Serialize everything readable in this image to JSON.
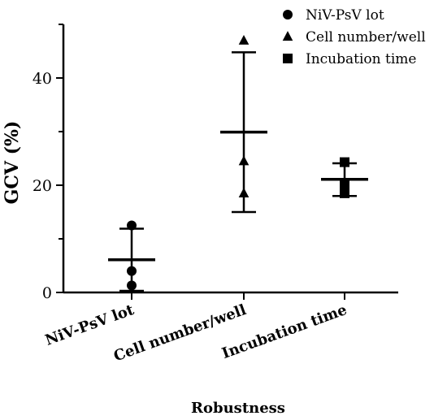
{
  "chart_data": {
    "type": "scatter",
    "title": "",
    "xlabel": "Robustness",
    "ylabel": "GCV (%)",
    "ylim": [
      0,
      50
    ],
    "yticks": [
      0,
      20,
      40
    ],
    "grid": false,
    "legend_position": "top-right",
    "categories": [
      "NiV-PsV lot",
      "Cell number/well",
      "Incubation time"
    ],
    "series": [
      {
        "name": "NiV-PsV lot",
        "marker": "circle",
        "category": "NiV-PsV lot",
        "values": [
          12.5,
          4.0,
          1.3
        ],
        "mean": 6.1,
        "sd_low": 0.3,
        "sd_high": 11.9
      },
      {
        "name": "Cell number/well",
        "marker": "triangle",
        "category": "Cell number/well",
        "values": [
          47.0,
          24.5,
          18.5
        ],
        "mean": 29.9,
        "sd_low": 15.0,
        "sd_high": 44.8
      },
      {
        "name": "Incubation time",
        "marker": "square",
        "category": "Incubation time",
        "values": [
          24.3,
          20.2,
          18.5
        ],
        "mean": 21.1,
        "sd_low": 18.0,
        "sd_high": 24.1
      }
    ],
    "colors": {
      "marker": "#000000",
      "axis": "#000000"
    }
  }
}
